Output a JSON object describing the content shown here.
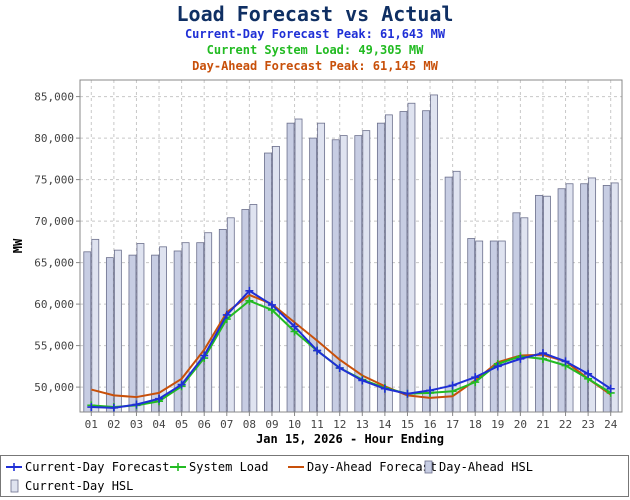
{
  "header": {
    "title": "Load Forecast vs Actual",
    "cd_peak": "Current-Day Forecast Peak:  61,643 MW",
    "sys_load": "Current System Load:  49,305 MW",
    "da_peak": "Day-Ahead Forecast Peak:  61,145 MW"
  },
  "colors": {
    "title": "#0f2f63",
    "current_day": "#1f2fd6",
    "system_load": "#22bb22",
    "day_ahead": "#c8500a",
    "da_hsl_fill": "#c7cde3",
    "cd_hsl_fill": "#dfe3f0"
  },
  "legend": {
    "items": [
      {
        "label": "Current-Day Forecast",
        "type": "line-marker",
        "color": "#1f2fd6"
      },
      {
        "label": "System Load",
        "type": "line-marker",
        "color": "#22bb22"
      },
      {
        "label": "Day-Ahead Forecast",
        "type": "line",
        "color": "#c8500a"
      },
      {
        "label": "Day-Ahead HSL",
        "type": "bar",
        "color": "#c7cde3"
      },
      {
        "label": "Current-Day HSL",
        "type": "bar",
        "color": "#dfe3f0"
      }
    ]
  },
  "chart_data": {
    "type": "bar",
    "xlabel": "Jan 15, 2026 - Hour Ending",
    "ylabel": "MW",
    "ylim": [
      47000,
      87000
    ],
    "y_ticks": [
      50000,
      55000,
      60000,
      65000,
      70000,
      75000,
      80000,
      85000
    ],
    "y_tick_labels": [
      "50,000",
      "55,000",
      "60,000",
      "65,000",
      "70,000",
      "75,000",
      "80,000",
      "85,000"
    ],
    "grid": true,
    "legend_position": "bottom",
    "categories": [
      "01",
      "02",
      "03",
      "04",
      "05",
      "06",
      "07",
      "08",
      "09",
      "10",
      "11",
      "12",
      "13",
      "14",
      "15",
      "16",
      "17",
      "18",
      "19",
      "20",
      "21",
      "22",
      "23",
      "24"
    ],
    "bars": [
      {
        "name": "Day-Ahead HSL",
        "values": [
          66300,
          65600,
          65900,
          65900,
          66400,
          67400,
          69000,
          71400,
          78200,
          81800,
          80000,
          79800,
          80300,
          81800,
          83200,
          83300,
          75300,
          67900,
          67600,
          71000,
          73100,
          73900,
          74500,
          74300
        ]
      },
      {
        "name": "Current-Day HSL",
        "values": [
          67800,
          66500,
          67300,
          66900,
          67400,
          68600,
          70400,
          72000,
          79000,
          82300,
          81800,
          80300,
          80900,
          82800,
          84200,
          85200,
          76000,
          67600,
          67600,
          70400,
          73000,
          74500,
          75200,
          74600
        ]
      }
    ],
    "series": [
      {
        "name": "Current-Day Forecast",
        "values": [
          47600,
          47500,
          47900,
          48600,
          50300,
          53800,
          58700,
          61600,
          59900,
          57300,
          54400,
          52300,
          50800,
          49800,
          49200,
          49600,
          50200,
          51200,
          52500,
          53400,
          54100,
          53100,
          51600,
          49800
        ]
      },
      {
        "name": "System Load",
        "values": [
          47800,
          47600,
          47800,
          48300,
          50100,
          53500,
          58200,
          60400,
          59300,
          56700,
          54400,
          52300,
          50900,
          49900,
          49200,
          49300,
          49500,
          50600,
          52800,
          53700,
          53400,
          52600,
          51000,
          49300
        ]
      },
      {
        "name": "Day-Ahead Forecast",
        "values": [
          49700,
          49000,
          48800,
          49300,
          51000,
          54500,
          59000,
          61100,
          60000,
          57800,
          55600,
          53300,
          51400,
          50100,
          49000,
          48700,
          48900,
          50800,
          53000,
          53800,
          53900,
          53100,
          51000,
          49100
        ]
      }
    ]
  }
}
